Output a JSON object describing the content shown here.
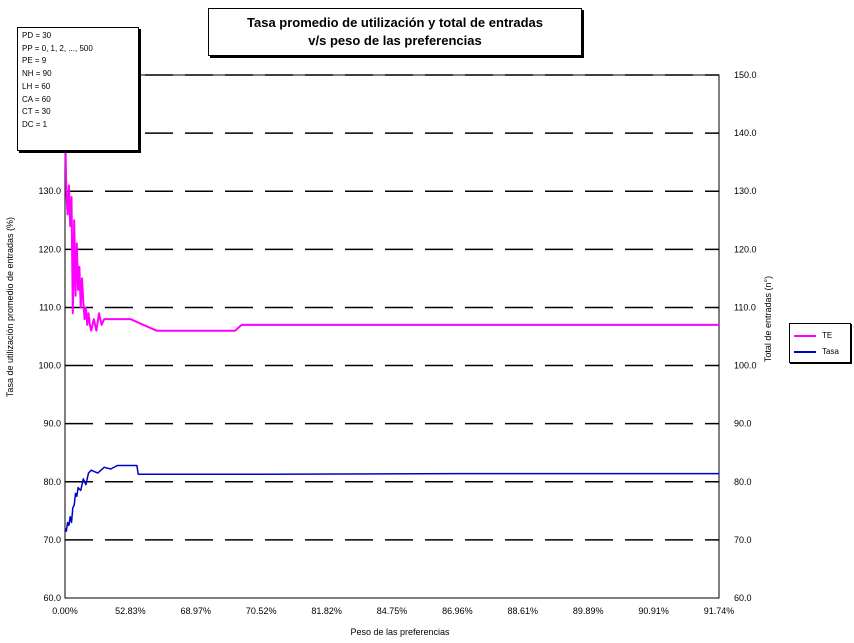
{
  "title_lines": [
    "Tasa promedio de utilización y total de entradas",
    "v/s peso de las preferencias"
  ],
  "parameters": [
    "PD = 30",
    "PP = 0, 1, 2, ..., 500",
    "PE = 9",
    "NH = 90",
    "LH = 60",
    "CA = 60",
    "CT = 30",
    "DC = 1"
  ],
  "colors": {
    "total": "#ff00ff",
    "tasa": "#0000cc",
    "grid": "#000000"
  },
  "chart_data": {
    "type": "line",
    "title": "Tasa promedio de utilización y total de entradas v/s peso de las preferencias",
    "xlabel": "Peso de las preferencias",
    "ylabel_left": "Tasa de utilización promedio de entradas (%)",
    "ylabel_right": "Total de entradas (n°)",
    "x_tick_labels": [
      "0.00%",
      "52.83%",
      "68.97%",
      "70.52%",
      "81.82%",
      "84.75%",
      "86.96%",
      "88.61%",
      "89.89%",
      "90.91%",
      "91.74%"
    ],
    "x_range": [
      0,
      500
    ],
    "y_left_ticks": [
      "60.0",
      "70.0",
      "80.0",
      "90.0",
      "100.0",
      "110.0",
      "120.0",
      "130.0"
    ],
    "y_left_range": [
      60,
      150
    ],
    "y_right_ticks": [
      "60.0",
      "70.0",
      "80.0",
      "90.0",
      "100.0",
      "110.0",
      "120.0",
      "130.0",
      "140.0",
      "150.0"
    ],
    "y_right_range": [
      60,
      150
    ],
    "gridlines": [
      70,
      80,
      90,
      100,
      110,
      120,
      130,
      140,
      150
    ],
    "legend_position": "right",
    "series": [
      {
        "name": "TE",
        "axis": "right",
        "x": [
          0,
          1,
          2,
          3,
          4,
          5,
          6,
          7,
          8,
          9,
          10,
          11,
          12,
          13,
          14,
          15,
          16,
          17,
          18,
          19,
          20,
          22,
          24,
          26,
          28,
          30,
          33,
          36,
          40,
          45,
          50,
          60,
          70,
          80,
          100,
          130,
          135,
          200,
          300,
          400,
          500
        ],
        "values": [
          142,
          130,
          126,
          131,
          124,
          129,
          109,
          125,
          112,
          121,
          113,
          117,
          110,
          115,
          111,
          108,
          110,
          107,
          109,
          107,
          106,
          108,
          106,
          109,
          107,
          108,
          108,
          108,
          108,
          108,
          108,
          107,
          106,
          106,
          106,
          106,
          107,
          107,
          107,
          107,
          107
        ]
      },
      {
        "name": "Tasa",
        "axis": "left",
        "x": [
          0,
          1,
          2,
          3,
          4,
          5,
          6,
          7,
          8,
          9,
          10,
          12,
          14,
          16,
          18,
          20,
          25,
          30,
          35,
          40,
          50,
          55,
          56,
          80,
          150,
          300,
          500
        ],
        "values": [
          72,
          71.5,
          73,
          72.5,
          74,
          73,
          75.5,
          76,
          78,
          77.5,
          79,
          78.5,
          80.5,
          79.5,
          81.5,
          82,
          81.5,
          82.5,
          82.2,
          82.8,
          82.8,
          82.8,
          81.3,
          81.3,
          81.3,
          81.4,
          81.4
        ]
      }
    ]
  }
}
